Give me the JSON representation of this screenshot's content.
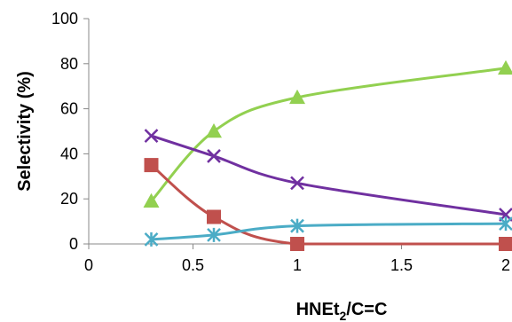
{
  "chart_data": {
    "type": "scatter",
    "xlabel": "HNEt2/C=C",
    "xlabel_parts": {
      "main": "HNEt",
      "sub": "2",
      "tail": "/C=C"
    },
    "ylabel": "Selectivity (%)",
    "xlim": [
      0,
      2
    ],
    "ylim": [
      0,
      100
    ],
    "x_ticks": [
      0,
      0.5,
      1,
      1.5,
      2
    ],
    "x_tick_labels": [
      "0",
      "0.5",
      "1",
      "1.5",
      "2"
    ],
    "y_ticks": [
      0,
      20,
      40,
      60,
      80,
      100
    ],
    "y_tick_labels": [
      "0",
      "20",
      "40",
      "60",
      "80",
      "100"
    ],
    "grid": false,
    "series": [
      {
        "marker": "triangle",
        "color": "#92D050",
        "x": [
          0.3,
          0.6,
          1,
          2
        ],
        "y": [
          19,
          50,
          65,
          78
        ]
      },
      {
        "marker": "x",
        "color": "#7030A0",
        "x": [
          0.3,
          0.6,
          1,
          2
        ],
        "y": [
          48,
          39,
          27,
          13
        ]
      },
      {
        "marker": "square",
        "color": "#C0504D",
        "x": [
          0.3,
          0.6,
          1,
          2
        ],
        "y": [
          35,
          12,
          0,
          0
        ]
      },
      {
        "marker": "star",
        "color": "#4BACC6",
        "x": [
          0.3,
          0.6,
          1,
          2
        ],
        "y": [
          2,
          4,
          8,
          9
        ]
      }
    ]
  }
}
